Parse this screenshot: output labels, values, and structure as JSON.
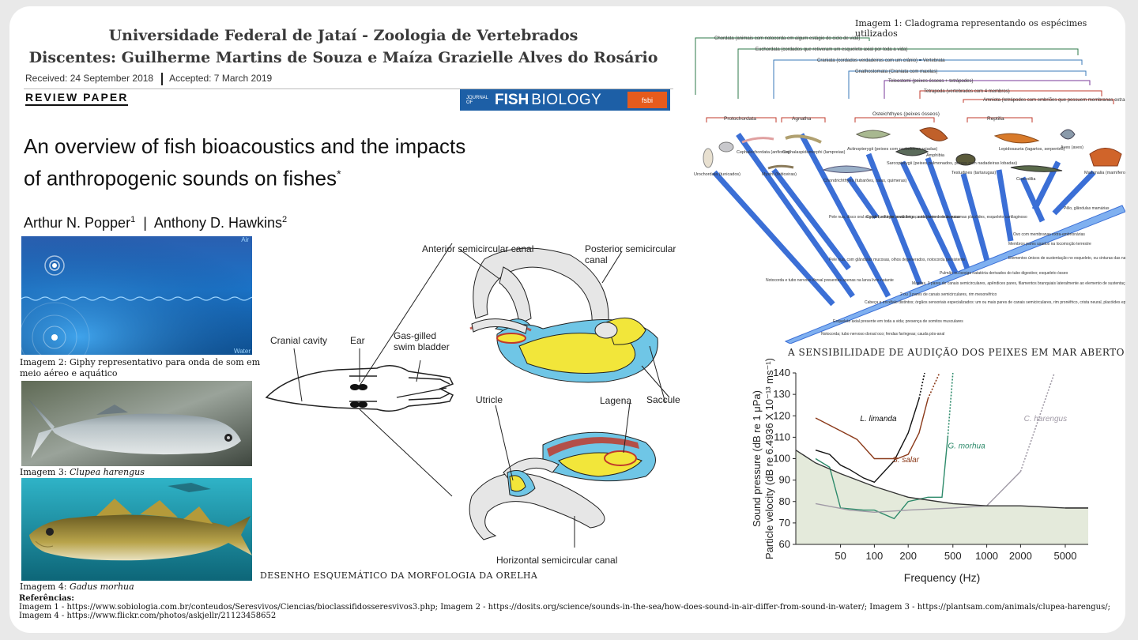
{
  "header": {
    "line1": "Universidade Federal de Jataí - Zoologia de Vertebrados",
    "line2": "Discentes: Guilherme Martins de Souza e Maíza Grazielle Alves do Rosário"
  },
  "paper": {
    "received": "Received: 24 September 2018",
    "accepted": "Accepted: 7 March 2019",
    "type": "REVIEW PAPER",
    "journal_small": "JOURNAL OF",
    "journal_fish": "FISH",
    "journal_bio": "BIOLOGY",
    "journal_badge": "fsbi",
    "title_line1": "An overview of fish bioacoustics and the impacts",
    "title_line2": "of anthropogenic sounds on fishes",
    "title_mark": "*",
    "author1": "Arthur N. Popper",
    "author1_sup": "1",
    "author_sep": "|",
    "author2": "Anthony D. Hawkins",
    "author2_sup": "2"
  },
  "images": {
    "img2_air": "Air",
    "img2_water": "Water",
    "img2_caption": "Imagem 2: Giphy representativo para onda de som em meio aéreo e aquático",
    "img3_prefix": "Imagem 3: ",
    "img3_species": "Clupea harengus",
    "img4_prefix": "Imagem 4: ",
    "img4_species": "Gadus morhua"
  },
  "ear": {
    "cranial": "Cranial cavity",
    "ear": "Ear",
    "swim1": "Gas-gilled",
    "swim2": "swim bladder",
    "anterior": "Anterior semicircular canal",
    "posterior": "Posterior semicircular canal",
    "utricle": "Utricle",
    "lagena": "Lagena",
    "saccule": "Saccule",
    "horizontal": "Horizontal semicircular canal",
    "caption": "DESENHO ESQUEMÁTICO DA MORFOLOGIA DA ORELHA"
  },
  "cladogram": {
    "caption": "Imagem 1: Cladograma representando os espécimes utilizados",
    "clades": [
      "Chordata (animais com notocorda em algum estágio do ciclo de vida)",
      "Euchordata (cordados que retiveram um esqueleto axial por toda a vida)",
      "Craniata (cordados verdadeiros com um crânio) = Vertebrata",
      "Gnathostomata (Craniata com maxilas)",
      "Teleostomi (peixes ósseos + tetrápodes)",
      "Tetrapoda (vertebrados com 4 membros)",
      "Amniota (tetrápodes com embriões que possuem membranas extra-embrionárias)"
    ],
    "groups": [
      "Protochordata",
      "Agnatha",
      "Osteichthyes (peixes ósseos)",
      "Reptilia"
    ],
    "taxa": [
      "Urochordata (tunicados)",
      "Cephalochordata (anfioxos)",
      "Cephalaspidomorphi (lampreias)",
      "Myxini (feiticeiras)",
      "Chondrichthyes (tubarões, raias, quimeras)",
      "Actinopterygii (peixes com nadadeiras raiadas)",
      "Sarcopterygii (peixes pulmonados, peixes com nadadeiras lobadas)",
      "Amphibia",
      "Testudines (tartarugas)",
      "Lepidosauria (lagartos, serpentes)",
      "Crocodilia",
      "Aves (aves)",
      "Mammalia (mamíferos)"
    ],
    "branch_notes": [
      "Notocorda e tubo nervoso dorsal presentes apenas na larva livre-natante",
      "Pele nua, com glândulas mucosas, olhos degenerados, notocorda persistente",
      "Pele nua, disco oral sugador, estágio larval longo, sete pares de brânquias",
      "Corpo fusiforme, nadadeira caudal heterocerca, escamas placóides, esqueleto cartilaginoso"
    ],
    "synapomorphies": [
      "Pêlo, glândulas mamárias",
      "Ovo com membranas extra-embrionárias",
      "Membros pares usados na locomoção terrestre",
      "Elementos únicos de sustentação no esqueleto, ou cinturas das nadadeiras ou membros",
      "Pulmão ou bexiga natatória derivados do tubo digestivo; esqueleto ósseo",
      "Maxilas, 3 pares de canais semicirculares, apêndices pares, filamentos branquiais lateralmente ao elemento de sustentação da brânquia",
      "2 ou 3 pares de canais semicirculares, rim mesonéfrico",
      "Cabeça e encéfalo distintos; órgãos sensoriais especializados: um ou mais pares de canais semicirculares, rim pronéfrico, crista neural, placóides epidérmicos neurogênicos",
      "Esqueleto axial presente em toda a vida; presença de somitos musculares",
      "Notocorda; tubo nervoso dorsal oco; fendas faríngeas; cauda pós-anal"
    ]
  },
  "chart_title": "A SENSIBILIDADE DE AUDIÇÃO DOS PEIXES EM MAR ABERTO",
  "chart_data": {
    "type": "line",
    "xlabel": "Frequency (Hz)",
    "ylabel1": "Sound pressure (dB re 1 μPa)",
    "ylabel2": "Particle velocity (dB re 6.4936 X 10⁻¹³ ms⁻¹)",
    "xscale": "log",
    "xlim": [
      20,
      8000
    ],
    "ylim": [
      60,
      140
    ],
    "xticks": [
      50,
      100,
      200,
      500,
      1000,
      2000,
      5000
    ],
    "yticks": [
      60,
      70,
      80,
      90,
      100,
      110,
      120,
      130,
      140
    ],
    "series": [
      {
        "name": "L. limanda",
        "color": "#111111",
        "x": [
          30,
          40,
          50,
          60,
          80,
          100,
          150,
          200,
          250,
          280
        ],
        "y": [
          104,
          102,
          97,
          95,
          91,
          89,
          99,
          112,
          128,
          140
        ]
      },
      {
        "name": "S. salar",
        "color": "#8b3a1a",
        "x": [
          30,
          50,
          70,
          100,
          160,
          200,
          250,
          300,
          380
        ],
        "y": [
          119,
          113,
          109,
          100,
          100,
          102,
          112,
          128,
          140
        ]
      },
      {
        "name": "G. morhua",
        "color": "#2e8b6b",
        "x": [
          30,
          40,
          50,
          80,
          100,
          150,
          200,
          300,
          400,
          450,
          500
        ],
        "y": [
          100,
          96,
          77,
          76,
          76,
          72,
          80,
          82,
          82,
          110,
          140
        ]
      },
      {
        "name": "C. harengus",
        "color": "#a09aa6",
        "x": [
          30,
          60,
          100,
          200,
          500,
          1000,
          2000,
          4000
        ],
        "y": [
          79,
          76,
          75,
          76,
          77,
          78,
          94,
          140
        ]
      },
      {
        "name": "",
        "color": "#333333",
        "x": [
          20,
          30,
          50,
          100,
          200,
          500,
          1000,
          2000,
          5000,
          8000
        ],
        "y": [
          104,
          98,
          93,
          87,
          82,
          79,
          78,
          78,
          77,
          77
        ]
      }
    ]
  },
  "references": {
    "label": "Referências:",
    "line1": "Imagem 1 - https://www.sobiologia.com.br/conteudos/Seresvivos/Ciencias/bioclassifidosseresvivos3.php;  Imagem 2 -  https://dosits.org/science/sounds-in-the-sea/how-does-sound-in-air-differ-from-sound-in-water/; Imagem 3 - https://plantsam.com/animals/clupea-harengus/;",
    "line2": "Imagem 4 - https://www.flickr.com/photos/askjellr/21123458652"
  }
}
